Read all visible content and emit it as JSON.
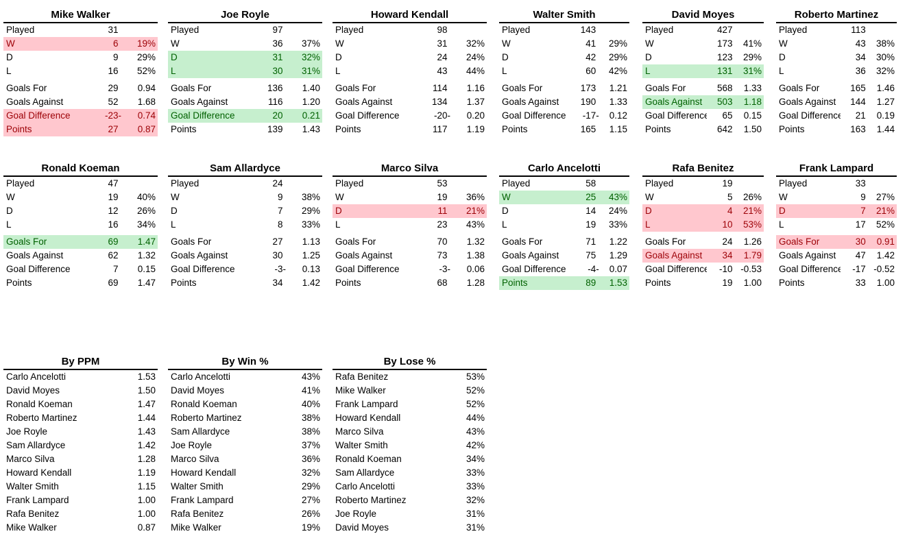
{
  "colors": {
    "bad_bg": "#ffc7ce",
    "bad_text": "#9c0006",
    "good_bg": "#c6efce",
    "good_text": "#006100",
    "text": "#000000",
    "rule": "#000000",
    "background": "#ffffff"
  },
  "managers": [
    {
      "name": "Mike Walker",
      "stats": [
        {
          "label": "Played",
          "value": "31",
          "dash": "",
          "pct": "",
          "highlight": "none"
        },
        {
          "label": "W",
          "value": "6",
          "dash": "",
          "pct": "19%",
          "highlight": "bad"
        },
        {
          "label": "D",
          "value": "9",
          "dash": "",
          "pct": "29%",
          "highlight": "none"
        },
        {
          "label": "L",
          "value": "16",
          "dash": "",
          "pct": "52%",
          "highlight": "none"
        },
        {
          "label": "Goals For",
          "value": "29",
          "dash": "",
          "pct": "0.94",
          "highlight": "none"
        },
        {
          "label": "Goals Against",
          "value": "52",
          "dash": "",
          "pct": "1.68",
          "highlight": "none"
        },
        {
          "label": "Goal Difference",
          "value": "-23",
          "dash": "-",
          "pct": "0.74",
          "highlight": "bad"
        },
        {
          "label": "Points",
          "value": "27",
          "dash": "",
          "pct": "0.87",
          "highlight": "bad"
        }
      ]
    },
    {
      "name": "Joe Royle",
      "stats": [
        {
          "label": "Played",
          "value": "97",
          "dash": "",
          "pct": "",
          "highlight": "none"
        },
        {
          "label": "W",
          "value": "36",
          "dash": "",
          "pct": "37%",
          "highlight": "none"
        },
        {
          "label": "D",
          "value": "31",
          "dash": "",
          "pct": "32%",
          "highlight": "good"
        },
        {
          "label": "L",
          "value": "30",
          "dash": "",
          "pct": "31%",
          "highlight": "good"
        },
        {
          "label": "Goals For",
          "value": "136",
          "dash": "",
          "pct": "1.40",
          "highlight": "none"
        },
        {
          "label": "Goals Against",
          "value": "116",
          "dash": "",
          "pct": "1.20",
          "highlight": "none"
        },
        {
          "label": "Goal Difference",
          "value": "20",
          "dash": "",
          "pct": "0.21",
          "highlight": "good"
        },
        {
          "label": "Points",
          "value": "139",
          "dash": "",
          "pct": "1.43",
          "highlight": "none"
        }
      ]
    },
    {
      "name": "Howard Kendall",
      "stats": [
        {
          "label": "Played",
          "value": "98",
          "dash": "",
          "pct": "",
          "highlight": "none"
        },
        {
          "label": "W",
          "value": "31",
          "dash": "",
          "pct": "32%",
          "highlight": "none"
        },
        {
          "label": "D",
          "value": "24",
          "dash": "",
          "pct": "24%",
          "highlight": "none"
        },
        {
          "label": "L",
          "value": "43",
          "dash": "",
          "pct": "44%",
          "highlight": "none"
        },
        {
          "label": "Goals For",
          "value": "114",
          "dash": "",
          "pct": "1.16",
          "highlight": "none"
        },
        {
          "label": "Goals Against",
          "value": "134",
          "dash": "",
          "pct": "1.37",
          "highlight": "none"
        },
        {
          "label": "Goal Difference",
          "value": "-20",
          "dash": "-",
          "pct": "0.20",
          "highlight": "none"
        },
        {
          "label": "Points",
          "value": "117",
          "dash": "",
          "pct": "1.19",
          "highlight": "none"
        }
      ]
    },
    {
      "name": "Walter Smith",
      "stats": [
        {
          "label": "Played",
          "value": "143",
          "dash": "",
          "pct": "",
          "highlight": "none"
        },
        {
          "label": "W",
          "value": "41",
          "dash": "",
          "pct": "29%",
          "highlight": "none"
        },
        {
          "label": "D",
          "value": "42",
          "dash": "",
          "pct": "29%",
          "highlight": "none"
        },
        {
          "label": "L",
          "value": "60",
          "dash": "",
          "pct": "42%",
          "highlight": "none"
        },
        {
          "label": "Goals For",
          "value": "173",
          "dash": "",
          "pct": "1.21",
          "highlight": "none"
        },
        {
          "label": "Goals Against",
          "value": "190",
          "dash": "",
          "pct": "1.33",
          "highlight": "none"
        },
        {
          "label": "Goal Difference",
          "value": "-17",
          "dash": "-",
          "pct": "0.12",
          "highlight": "none"
        },
        {
          "label": "Points",
          "value": "165",
          "dash": "",
          "pct": "1.15",
          "highlight": "none"
        }
      ]
    },
    {
      "name": "David Moyes",
      "stats": [
        {
          "label": "Played",
          "value": "427",
          "dash": "",
          "pct": "",
          "highlight": "none"
        },
        {
          "label": "W",
          "value": "173",
          "dash": "",
          "pct": "41%",
          "highlight": "none"
        },
        {
          "label": "D",
          "value": "123",
          "dash": "",
          "pct": "29%",
          "highlight": "none"
        },
        {
          "label": "L",
          "value": "131",
          "dash": "",
          "pct": "31%",
          "highlight": "good"
        },
        {
          "label": "Goals For",
          "value": "568",
          "dash": "",
          "pct": "1.33",
          "highlight": "none"
        },
        {
          "label": "Goals Against",
          "value": "503",
          "dash": "",
          "pct": "1.18",
          "highlight": "good"
        },
        {
          "label": "Goal Difference",
          "value": "65",
          "dash": "",
          "pct": "0.15",
          "highlight": "none"
        },
        {
          "label": "Points",
          "value": "642",
          "dash": "",
          "pct": "1.50",
          "highlight": "none"
        }
      ]
    },
    {
      "name": "Roberto Martinez",
      "stats": [
        {
          "label": "Played",
          "value": "113",
          "dash": "",
          "pct": "",
          "highlight": "none"
        },
        {
          "label": "W",
          "value": "43",
          "dash": "",
          "pct": "38%",
          "highlight": "none"
        },
        {
          "label": "D",
          "value": "34",
          "dash": "",
          "pct": "30%",
          "highlight": "none"
        },
        {
          "label": "L",
          "value": "36",
          "dash": "",
          "pct": "32%",
          "highlight": "none"
        },
        {
          "label": "Goals For",
          "value": "165",
          "dash": "",
          "pct": "1.46",
          "highlight": "none"
        },
        {
          "label": "Goals Against",
          "value": "144",
          "dash": "",
          "pct": "1.27",
          "highlight": "none"
        },
        {
          "label": "Goal Difference",
          "value": "21",
          "dash": "",
          "pct": "0.19",
          "highlight": "none"
        },
        {
          "label": "Points",
          "value": "163",
          "dash": "",
          "pct": "1.44",
          "highlight": "none"
        }
      ]
    },
    {
      "name": "Ronald Koeman",
      "stats": [
        {
          "label": "Played",
          "value": "47",
          "dash": "",
          "pct": "",
          "highlight": "none"
        },
        {
          "label": "W",
          "value": "19",
          "dash": "",
          "pct": "40%",
          "highlight": "none"
        },
        {
          "label": "D",
          "value": "12",
          "dash": "",
          "pct": "26%",
          "highlight": "none"
        },
        {
          "label": "L",
          "value": "16",
          "dash": "",
          "pct": "34%",
          "highlight": "none"
        },
        {
          "label": "Goals For",
          "value": "69",
          "dash": "",
          "pct": "1.47",
          "highlight": "good"
        },
        {
          "label": "Goals Against",
          "value": "62",
          "dash": "",
          "pct": "1.32",
          "highlight": "none"
        },
        {
          "label": "Goal Difference",
          "value": "7",
          "dash": "",
          "pct": "0.15",
          "highlight": "none"
        },
        {
          "label": "Points",
          "value": "69",
          "dash": "",
          "pct": "1.47",
          "highlight": "none"
        }
      ]
    },
    {
      "name": "Sam Allardyce",
      "stats": [
        {
          "label": "Played",
          "value": "24",
          "dash": "",
          "pct": "",
          "highlight": "none"
        },
        {
          "label": "W",
          "value": "9",
          "dash": "",
          "pct": "38%",
          "highlight": "none"
        },
        {
          "label": "D",
          "value": "7",
          "dash": "",
          "pct": "29%",
          "highlight": "none"
        },
        {
          "label": "L",
          "value": "8",
          "dash": "",
          "pct": "33%",
          "highlight": "none"
        },
        {
          "label": "Goals For",
          "value": "27",
          "dash": "",
          "pct": "1.13",
          "highlight": "none"
        },
        {
          "label": "Goals Against",
          "value": "30",
          "dash": "",
          "pct": "1.25",
          "highlight": "none"
        },
        {
          "label": "Goal Difference",
          "value": "-3",
          "dash": "-",
          "pct": "0.13",
          "highlight": "none"
        },
        {
          "label": "Points",
          "value": "34",
          "dash": "",
          "pct": "1.42",
          "highlight": "none"
        }
      ]
    },
    {
      "name": "Marco Silva",
      "stats": [
        {
          "label": "Played",
          "value": "53",
          "dash": "",
          "pct": "",
          "highlight": "none"
        },
        {
          "label": "W",
          "value": "19",
          "dash": "",
          "pct": "36%",
          "highlight": "none"
        },
        {
          "label": "D",
          "value": "11",
          "dash": "",
          "pct": "21%",
          "highlight": "bad"
        },
        {
          "label": "L",
          "value": "23",
          "dash": "",
          "pct": "43%",
          "highlight": "none"
        },
        {
          "label": "Goals For",
          "value": "70",
          "dash": "",
          "pct": "1.32",
          "highlight": "none"
        },
        {
          "label": "Goals Against",
          "value": "73",
          "dash": "",
          "pct": "1.38",
          "highlight": "none"
        },
        {
          "label": "Goal Difference",
          "value": "-3",
          "dash": "-",
          "pct": "0.06",
          "highlight": "none"
        },
        {
          "label": "Points",
          "value": "68",
          "dash": "",
          "pct": "1.28",
          "highlight": "none"
        }
      ]
    },
    {
      "name": "Carlo Ancelotti",
      "stats": [
        {
          "label": "Played",
          "value": "58",
          "dash": "",
          "pct": "",
          "highlight": "none"
        },
        {
          "label": "W",
          "value": "25",
          "dash": "",
          "pct": "43%",
          "highlight": "good"
        },
        {
          "label": "D",
          "value": "14",
          "dash": "",
          "pct": "24%",
          "highlight": "none"
        },
        {
          "label": "L",
          "value": "19",
          "dash": "",
          "pct": "33%",
          "highlight": "none"
        },
        {
          "label": "Goals For",
          "value": "71",
          "dash": "",
          "pct": "1.22",
          "highlight": "none"
        },
        {
          "label": "Goals Against",
          "value": "75",
          "dash": "",
          "pct": "1.29",
          "highlight": "none"
        },
        {
          "label": "Goal Difference",
          "value": "-4",
          "dash": "-",
          "pct": "0.07",
          "highlight": "none"
        },
        {
          "label": "Points",
          "value": "89",
          "dash": "",
          "pct": "1.53",
          "highlight": "good"
        }
      ]
    },
    {
      "name": "Rafa Benitez",
      "stats": [
        {
          "label": "Played",
          "value": "19",
          "dash": "",
          "pct": "",
          "highlight": "none"
        },
        {
          "label": "W",
          "value": "5",
          "dash": "",
          "pct": "26%",
          "highlight": "none"
        },
        {
          "label": "D",
          "value": "4",
          "dash": "",
          "pct": "21%",
          "highlight": "bad"
        },
        {
          "label": "L",
          "value": "10",
          "dash": "",
          "pct": "53%",
          "highlight": "bad"
        },
        {
          "label": "Goals For",
          "value": "24",
          "dash": "",
          "pct": "1.26",
          "highlight": "none"
        },
        {
          "label": "Goals Against",
          "value": "34",
          "dash": "",
          "pct": "1.79",
          "highlight": "bad"
        },
        {
          "label": "Goal Difference",
          "value": "-10",
          "dash": "",
          "pct": "-0.53",
          "highlight": "none"
        },
        {
          "label": "Points",
          "value": "19",
          "dash": "",
          "pct": "1.00",
          "highlight": "none"
        }
      ]
    },
    {
      "name": "Frank Lampard",
      "stats": [
        {
          "label": "Played",
          "value": "33",
          "dash": "",
          "pct": "",
          "highlight": "none"
        },
        {
          "label": "W",
          "value": "9",
          "dash": "",
          "pct": "27%",
          "highlight": "none"
        },
        {
          "label": "D",
          "value": "7",
          "dash": "",
          "pct": "21%",
          "highlight": "bad"
        },
        {
          "label": "L",
          "value": "17",
          "dash": "",
          "pct": "52%",
          "highlight": "none"
        },
        {
          "label": "Goals For",
          "value": "30",
          "dash": "",
          "pct": "0.91",
          "highlight": "bad"
        },
        {
          "label": "Goals Against",
          "value": "47",
          "dash": "",
          "pct": "1.42",
          "highlight": "none"
        },
        {
          "label": "Goal Difference",
          "value": "-17",
          "dash": "",
          "pct": "-0.52",
          "highlight": "none"
        },
        {
          "label": "Points",
          "value": "33",
          "dash": "",
          "pct": "1.00",
          "highlight": "none"
        }
      ]
    }
  ],
  "rankings": [
    {
      "title": "By PPM",
      "rows": [
        {
          "name": "Carlo Ancelotti",
          "value": "1.53"
        },
        {
          "name": "David Moyes",
          "value": "1.50"
        },
        {
          "name": "Ronald Koeman",
          "value": "1.47"
        },
        {
          "name": "Roberto Martinez",
          "value": "1.44"
        },
        {
          "name": "Joe Royle",
          "value": "1.43"
        },
        {
          "name": "Sam Allardyce",
          "value": "1.42"
        },
        {
          "name": "Marco Silva",
          "value": "1.28"
        },
        {
          "name": "Howard Kendall",
          "value": "1.19"
        },
        {
          "name": "Walter Smith",
          "value": "1.15"
        },
        {
          "name": "Frank Lampard",
          "value": "1.00"
        },
        {
          "name": "Rafa Benitez",
          "value": "1.00"
        },
        {
          "name": "Mike Walker",
          "value": "0.87"
        }
      ]
    },
    {
      "title": "By Win %",
      "rows": [
        {
          "name": "Carlo Ancelotti",
          "value": "43%"
        },
        {
          "name": "David Moyes",
          "value": "41%"
        },
        {
          "name": "Ronald Koeman",
          "value": "40%"
        },
        {
          "name": "Roberto Martinez",
          "value": "38%"
        },
        {
          "name": "Sam Allardyce",
          "value": "38%"
        },
        {
          "name": "Joe Royle",
          "value": "37%"
        },
        {
          "name": "Marco Silva",
          "value": "36%"
        },
        {
          "name": "Howard Kendall",
          "value": "32%"
        },
        {
          "name": "Walter Smith",
          "value": "29%"
        },
        {
          "name": "Frank Lampard",
          "value": "27%"
        },
        {
          "name": "Rafa Benitez",
          "value": "26%"
        },
        {
          "name": "Mike Walker",
          "value": "19%"
        }
      ]
    },
    {
      "title": "By Lose %",
      "rows": [
        {
          "name": "Rafa Benitez",
          "value": "53%"
        },
        {
          "name": "Mike Walker",
          "value": "52%"
        },
        {
          "name": "Frank Lampard",
          "value": "52%"
        },
        {
          "name": "Howard Kendall",
          "value": "44%"
        },
        {
          "name": "Marco Silva",
          "value": "43%"
        },
        {
          "name": "Walter Smith",
          "value": "42%"
        },
        {
          "name": "Ronald Koeman",
          "value": "34%"
        },
        {
          "name": "Sam Allardyce",
          "value": "33%"
        },
        {
          "name": "Carlo Ancelotti",
          "value": "33%"
        },
        {
          "name": "Roberto Martinez",
          "value": "32%"
        },
        {
          "name": "Joe Royle",
          "value": "31%"
        },
        {
          "name": "David Moyes",
          "value": "31%"
        }
      ]
    }
  ]
}
